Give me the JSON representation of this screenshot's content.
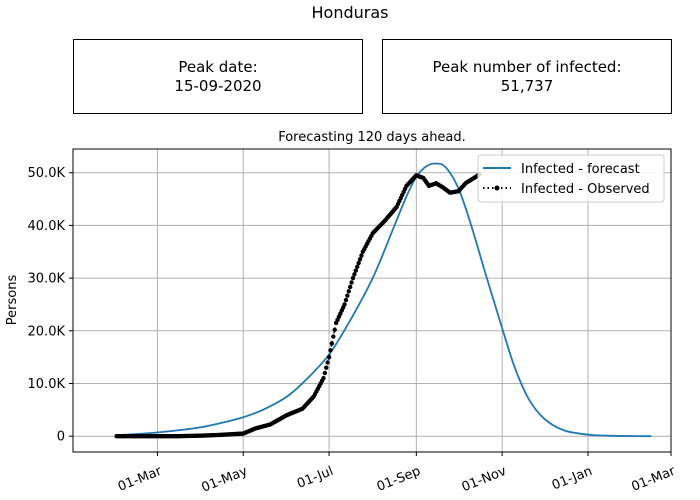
{
  "page": {
    "title": "Honduras"
  },
  "peak_date": {
    "label": "Peak date:",
    "value": "15-09-2020"
  },
  "peak_infected": {
    "label": "Peak number of infected:",
    "value": "51,737"
  },
  "chart_data": {
    "type": "line",
    "title": "Forecasting 120 days ahead.",
    "ylabel": "Persons",
    "xlabel": "",
    "grid": true,
    "legend_position": "top-right",
    "x_range": [
      "2020-01-01",
      "2021-03-01"
    ],
    "y_range": [
      -3000,
      54500
    ],
    "x_ticks": [
      {
        "date": "2020-03-01",
        "label": "01-Mar"
      },
      {
        "date": "2020-05-01",
        "label": "01-May"
      },
      {
        "date": "2020-07-01",
        "label": "01-Jul"
      },
      {
        "date": "2020-09-01",
        "label": "01-Sep"
      },
      {
        "date": "2020-11-01",
        "label": "01-Nov"
      },
      {
        "date": "2021-01-01",
        "label": "01-Jan"
      },
      {
        "date": "2021-03-01",
        "label": "01-Mar"
      }
    ],
    "y_ticks": [
      {
        "value": 0,
        "label": "0"
      },
      {
        "value": 10000,
        "label": "10.0K"
      },
      {
        "value": 20000,
        "label": "20.0K"
      },
      {
        "value": 30000,
        "label": "30.0K"
      },
      {
        "value": 40000,
        "label": "40.0K"
      },
      {
        "value": 50000,
        "label": "50.0K"
      }
    ],
    "series": [
      {
        "name": "Infected - forecast",
        "color": "#1f77b4",
        "style": "line",
        "points": [
          [
            "2020-02-01",
            200
          ],
          [
            "2020-02-15",
            400
          ],
          [
            "2020-03-01",
            700
          ],
          [
            "2020-03-15",
            1100
          ],
          [
            "2020-04-01",
            1700
          ],
          [
            "2020-04-15",
            2500
          ],
          [
            "2020-05-01",
            3600
          ],
          [
            "2020-05-15",
            5000
          ],
          [
            "2020-06-01",
            7500
          ],
          [
            "2020-06-15",
            10800
          ],
          [
            "2020-07-01",
            15500
          ],
          [
            "2020-07-15",
            21500
          ],
          [
            "2020-08-01",
            30000
          ],
          [
            "2020-08-15",
            39000
          ],
          [
            "2020-08-25",
            45500
          ],
          [
            "2020-09-01",
            49200
          ],
          [
            "2020-09-08",
            51200
          ],
          [
            "2020-09-15",
            51737
          ],
          [
            "2020-09-22",
            51000
          ],
          [
            "2020-10-01",
            47000
          ],
          [
            "2020-10-10",
            40000
          ],
          [
            "2020-10-20",
            31000
          ],
          [
            "2020-11-01",
            20500
          ],
          [
            "2020-11-10",
            13000
          ],
          [
            "2020-11-20",
            7000
          ],
          [
            "2020-12-01",
            3300
          ],
          [
            "2020-12-15",
            1100
          ],
          [
            "2021-01-01",
            300
          ],
          [
            "2021-01-15",
            100
          ],
          [
            "2021-02-01",
            20
          ],
          [
            "2021-02-15",
            0
          ]
        ]
      },
      {
        "name": "Infected - Observed",
        "color": "#000000",
        "style": "dotted-markers",
        "points": [
          [
            "2020-02-01",
            0
          ],
          [
            "2020-03-15",
            0
          ],
          [
            "2020-04-01",
            100
          ],
          [
            "2020-04-15",
            250
          ],
          [
            "2020-05-01",
            500
          ],
          [
            "2020-05-10",
            1500
          ],
          [
            "2020-05-20",
            2200
          ],
          [
            "2020-06-01",
            4000
          ],
          [
            "2020-06-12",
            5200
          ],
          [
            "2020-06-20",
            7500
          ],
          [
            "2020-06-27",
            11000
          ],
          [
            "2020-07-01",
            15000
          ],
          [
            "2020-07-06",
            21500
          ],
          [
            "2020-07-12",
            25000
          ],
          [
            "2020-07-18",
            30000
          ],
          [
            "2020-07-25",
            35000
          ],
          [
            "2020-08-01",
            38500
          ],
          [
            "2020-08-10",
            41000
          ],
          [
            "2020-08-18",
            43500
          ],
          [
            "2020-08-25",
            47500
          ],
          [
            "2020-09-01",
            49500
          ],
          [
            "2020-09-06",
            49000
          ],
          [
            "2020-09-10",
            47500
          ],
          [
            "2020-09-15",
            48000
          ],
          [
            "2020-09-20",
            47200
          ],
          [
            "2020-09-25",
            46200
          ],
          [
            "2020-10-01",
            46500
          ],
          [
            "2020-10-06",
            48000
          ],
          [
            "2020-10-12",
            49000
          ],
          [
            "2020-10-16",
            49700
          ]
        ]
      }
    ]
  }
}
